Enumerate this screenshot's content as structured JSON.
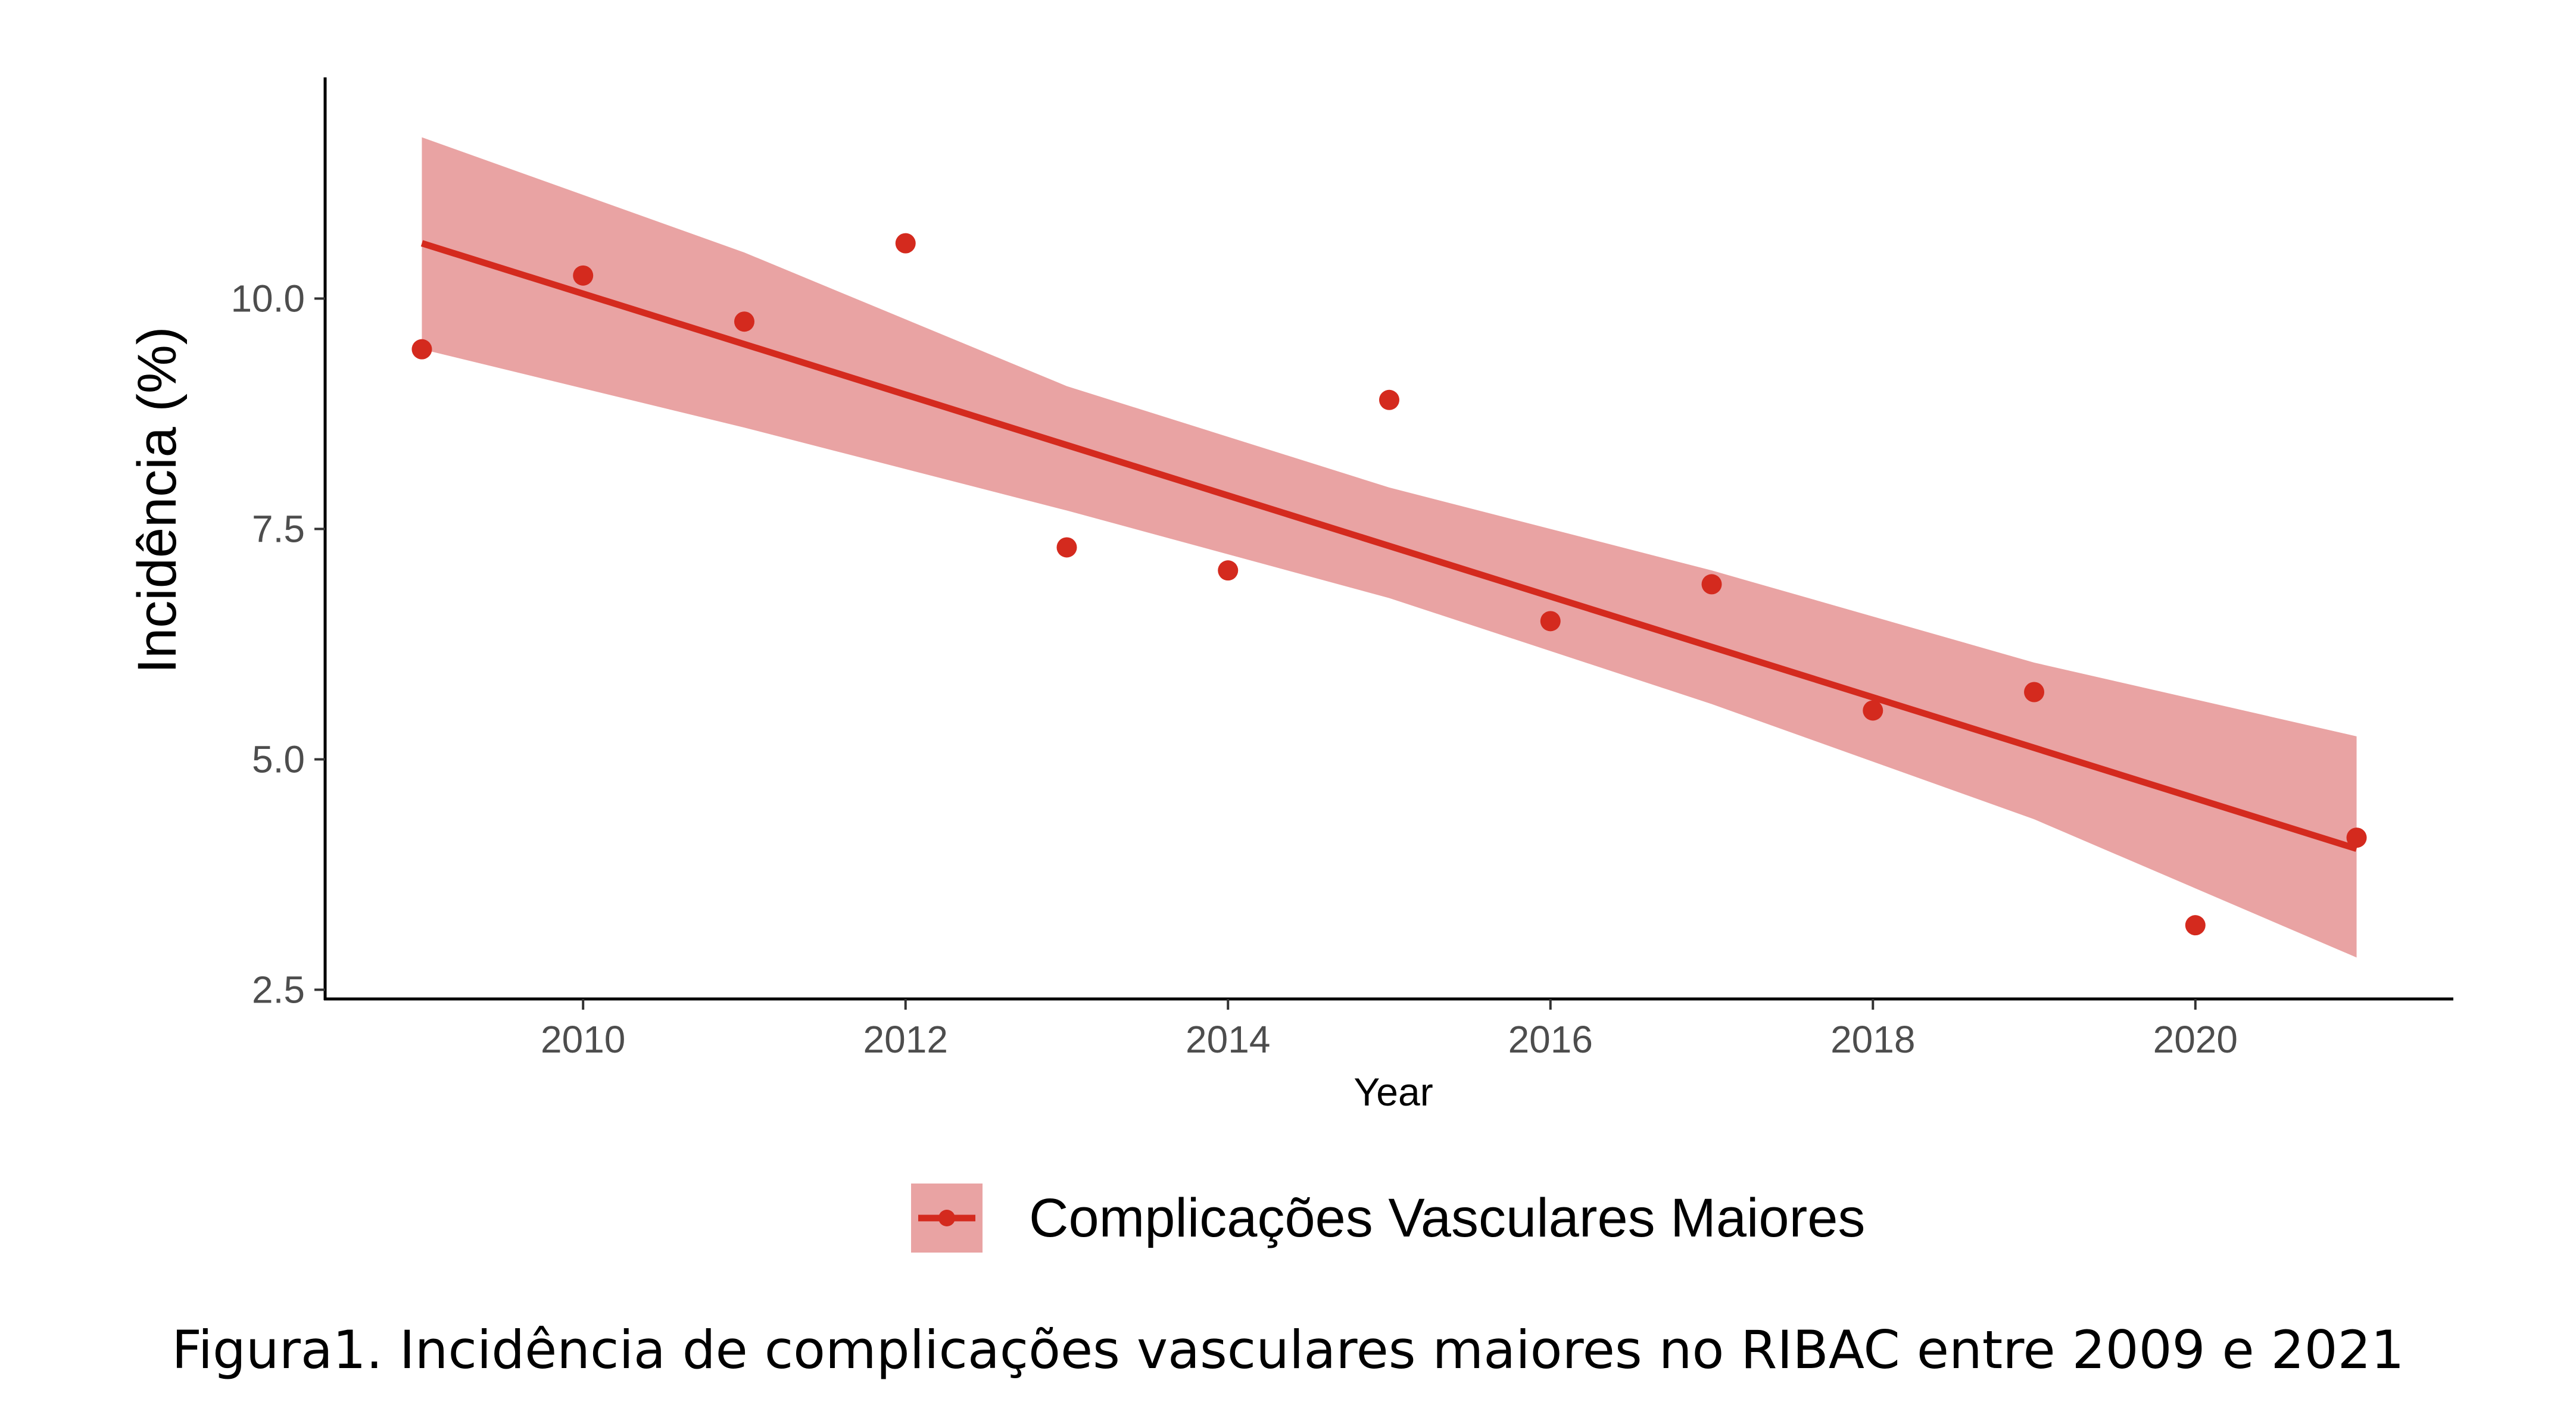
{
  "chart_data": {
    "type": "scatter",
    "xlabel": "Year",
    "ylabel": "Incidência (%)",
    "caption": "Figura1. Incidência de complicações vasculares maiores no RIBAC entre 2009 e 2021",
    "xlim": [
      2008.4,
      2021.6
    ],
    "ylim": [
      2.4,
      12.4
    ],
    "x_ticks": [
      2010,
      2012,
      2014,
      2016,
      2018,
      2020
    ],
    "x_tick_labels": [
      "2010",
      "2012",
      "2014",
      "2016",
      "2018",
      "2020"
    ],
    "y_ticks": [
      2.5,
      5.0,
      7.5,
      10.0
    ],
    "y_tick_labels": [
      "2.5",
      "5.0",
      "7.5",
      "10.0"
    ],
    "grid": false,
    "legend_position": "bottom",
    "series": [
      {
        "name": "Complicações Vasculares Maiores",
        "color": "#d42a1e",
        "band_color": "#e9a3a3",
        "x": [
          2009,
          2010,
          2011,
          2012,
          2013,
          2014,
          2015,
          2016,
          2017,
          2018,
          2019,
          2020,
          2021
        ],
        "y": [
          9.45,
          10.25,
          9.75,
          10.6,
          7.3,
          7.05,
          8.9,
          6.5,
          6.9,
          5.53,
          5.73,
          3.2,
          4.15
        ],
        "trend": {
          "x": [
            2009,
            2021
          ],
          "y": [
            10.6,
            4.03
          ]
        },
        "confidence_band": {
          "x": [
            2009,
            2011,
            2013,
            2015,
            2017,
            2019,
            2021
          ],
          "lower": [
            9.45,
            8.6,
            7.7,
            6.75,
            5.6,
            4.35,
            2.85
          ],
          "upper": [
            11.75,
            10.5,
            9.05,
            7.95,
            7.05,
            6.05,
            5.25
          ]
        }
      }
    ]
  }
}
